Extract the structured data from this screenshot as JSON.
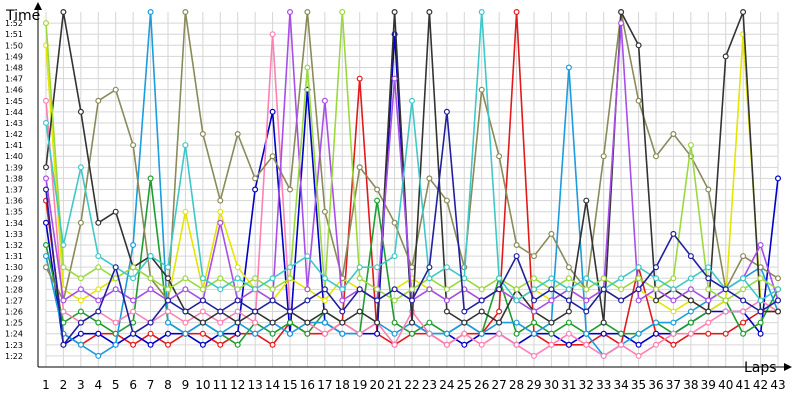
{
  "chart_data": {
    "type": "line",
    "xlabel": "Laps",
    "ylabel": "Time",
    "x": [
      1,
      2,
      3,
      4,
      5,
      6,
      7,
      8,
      9,
      10,
      11,
      12,
      13,
      14,
      15,
      16,
      17,
      18,
      19,
      20,
      21,
      22,
      23,
      24,
      25,
      26,
      27,
      28,
      29,
      30,
      31,
      32,
      33,
      34,
      35,
      36,
      37,
      38,
      39,
      40,
      41,
      42,
      43
    ],
    "xlim": [
      1,
      43
    ],
    "ylim": [
      "1:21",
      "1:53"
    ],
    "y_ticks": [
      "1:22",
      "1:23",
      "1:24",
      "1:25",
      "1:26",
      "1:27",
      "1:28",
      "1:29",
      "1:30",
      "1:31",
      "1:32",
      "1:33",
      "1:34",
      "1:35",
      "1:36",
      "1:37",
      "1:38",
      "1:39",
      "1:40",
      "1:41",
      "1:42",
      "1:43",
      "1:44",
      "1:45",
      "1:46",
      "1:47",
      "1:48",
      "1:49",
      "1:50",
      "1:51",
      "1:52"
    ],
    "grid": true,
    "legend": "none",
    "series": [
      {
        "color": "#e31a1c",
        "values": [
          "1:36",
          "1:24",
          "1:23",
          "1:24",
          "1:24",
          "1:23",
          "1:24",
          "1:23",
          "1:24",
          "1:24",
          "1:23",
          "1:24",
          "1:24",
          "1:23",
          "1:25",
          "1:24",
          "1:24",
          "1:25",
          "1:47",
          "1:24",
          "1:23",
          "1:24",
          "1:24",
          "1:23",
          "1:24",
          "1:24",
          "1:26",
          "1:53",
          "1:24",
          "1:23",
          "1:23",
          "1:23",
          "1:24",
          "1:23",
          "1:30",
          "1:24",
          "1:23",
          "1:24",
          "1:24",
          "1:24",
          "1:25",
          "1:26",
          "1:26"
        ]
      },
      {
        "color": "#0000c8",
        "values": [
          "1:34",
          "1:23",
          "1:24",
          "1:24",
          "1:23",
          "1:24",
          "1:23",
          "1:24",
          "1:24",
          "1:23",
          "1:24",
          "1:24",
          "1:37",
          "1:44",
          "1:24",
          "1:46",
          "1:25",
          "1:24",
          "1:24",
          "1:24",
          "1:51",
          "1:25",
          "1:24",
          "1:24",
          "1:23",
          "1:24",
          "1:24",
          "1:23",
          "1:24",
          "1:24",
          "1:23",
          "1:24",
          "1:24",
          "1:24",
          "1:23",
          "1:24",
          "1:24",
          "1:25",
          "1:26",
          "1:26",
          "1:26",
          "1:24",
          "1:38"
        ]
      },
      {
        "color": "#1f9e2e",
        "values": [
          "1:32",
          "1:25",
          "1:26",
          "1:25",
          "1:24",
          "1:25",
          "1:38",
          "1:25",
          "1:24",
          "1:25",
          "1:24",
          "1:23",
          "1:25",
          "1:24",
          "1:25",
          "1:24",
          "1:26",
          "1:25",
          "1:24",
          "1:36",
          "1:25",
          "1:24",
          "1:25",
          "1:24",
          "1:25",
          "1:24",
          "1:29",
          "1:24",
          "1:25",
          "1:24",
          "1:25",
          "1:24",
          "1:25",
          "1:24",
          "1:24",
          "1:25",
          "1:24",
          "1:25",
          "1:26",
          "1:27",
          "1:24",
          "1:25",
          "1:28"
        ]
      },
      {
        "color": "#1a9cde",
        "values": [
          "1:31",
          "1:24",
          "1:23",
          "1:22",
          "1:23",
          "1:32",
          "1:53",
          "1:25",
          "1:24",
          "1:25",
          "1:24",
          "1:25",
          "1:24",
          "1:25",
          "1:24",
          "1:25",
          "1:25",
          "1:24",
          "1:24",
          "1:25",
          "1:24",
          "1:25",
          "1:24",
          "1:24",
          "1:25",
          "1:24",
          "1:25",
          "1:25",
          "1:24",
          "1:25",
          "1:48",
          "1:24",
          "1:22",
          "1:23",
          "1:24",
          "1:25",
          "1:25",
          "1:26",
          "1:27",
          "1:28",
          "1:29",
          "1:30",
          "1:26"
        ]
      },
      {
        "color": "#e5e500",
        "values": [
          "1:50",
          "1:28",
          "1:27",
          "1:28",
          "1:29",
          "1:30",
          "1:29",
          "1:27",
          "1:35",
          "1:28",
          "1:35",
          "1:30",
          "1:28",
          "1:27",
          "1:29",
          "1:28",
          "1:27",
          "1:29",
          "1:28",
          "1:27",
          "1:28",
          "1:29",
          "1:28",
          "1:27",
          "1:28",
          "1:27",
          "1:28",
          "1:27",
          "1:28",
          "1:27",
          "1:28",
          "1:27",
          "1:28",
          "1:27",
          "1:28",
          "1:27",
          "1:26",
          "1:27",
          "1:26",
          "1:27",
          "1:51",
          "1:27",
          "1:26"
        ]
      },
      {
        "color": "#ff80b4",
        "values": [
          "1:45",
          "1:26",
          "1:25",
          "1:26",
          "1:25",
          "1:26",
          "1:25",
          "1:26",
          "1:25",
          "1:26",
          "1:25",
          "1:26",
          "1:25",
          "1:51",
          "1:26",
          "1:25",
          "1:24",
          "1:25",
          "1:24",
          "1:25",
          "1:23",
          "1:26",
          "1:24",
          "1:23",
          "1:24",
          "1:23",
          "1:24",
          "1:23",
          "1:22",
          "1:23",
          "1:24",
          "1:23",
          "1:22",
          "1:23",
          "1:22",
          "1:23",
          "1:24",
          "1:24",
          "1:25",
          "1:26",
          "1:26",
          "1:27",
          "1:26"
        ]
      },
      {
        "color": "#8a8a5a",
        "values": [
          "1:30",
          "1:27",
          "1:34",
          "1:45",
          "1:46",
          "1:41",
          "1:29",
          "1:27",
          "1:53",
          "1:42",
          "1:36",
          "1:42",
          "1:38",
          "1:40",
          "1:37",
          "1:53",
          "1:35",
          "1:29",
          "1:39",
          "1:37",
          "1:34",
          "1:30",
          "1:38",
          "1:36",
          "1:30",
          "1:46",
          "1:40",
          "1:32",
          "1:31",
          "1:33",
          "1:30",
          "1:28",
          "1:40",
          "1:53",
          "1:45",
          "1:40",
          "1:42",
          "1:40",
          "1:37",
          "1:28",
          "1:31",
          "1:30",
          "1:29"
        ]
      },
      {
        "color": "#333333",
        "values": [
          "1:39",
          "1:53",
          "1:44",
          "1:34",
          "1:35",
          "1:30",
          "1:31",
          "1:29",
          "1:26",
          "1:25",
          "1:26",
          "1:25",
          "1:26",
          "1:25",
          "1:26",
          "1:25",
          "1:26",
          "1:25",
          "1:26",
          "1:25",
          "1:53",
          "1:25",
          "1:53",
          "1:26",
          "1:25",
          "1:26",
          "1:25",
          "1:28",
          "1:26",
          "1:25",
          "1:26",
          "1:36",
          "1:25",
          "1:53",
          "1:50",
          "1:27",
          "1:28",
          "1:27",
          "1:26",
          "1:49",
          "1:53",
          "1:26",
          "1:26"
        ]
      },
      {
        "color": "#a84ee8",
        "values": [
          "1:38",
          "1:27",
          "1:28",
          "1:27",
          "1:28",
          "1:27",
          "1:28",
          "1:27",
          "1:28",
          "1:27",
          "1:34",
          "1:27",
          "1:28",
          "1:27",
          "1:53",
          "1:28",
          "1:45",
          "1:27",
          "1:28",
          "1:27",
          "1:47",
          "1:27",
          "1:28",
          "1:27",
          "1:28",
          "1:27",
          "1:28",
          "1:27",
          "1:26",
          "1:27",
          "1:28",
          "1:27",
          "1:28",
          "1:52",
          "1:27",
          "1:28",
          "1:27",
          "1:28",
          "1:27",
          "1:28",
          "1:29",
          "1:32",
          "1:27"
        ]
      },
      {
        "color": "#9bd940",
        "values": [
          "1:52",
          "1:30",
          "1:29",
          "1:30",
          "1:29",
          "1:30",
          "1:29",
          "1:28",
          "1:29",
          "1:28",
          "1:29",
          "1:28",
          "1:29",
          "1:28",
          "1:29",
          "1:48",
          "1:28",
          "1:53",
          "1:29",
          "1:28",
          "1:27",
          "1:28",
          "1:29",
          "1:28",
          "1:29",
          "1:28",
          "1:29",
          "1:28",
          "1:29",
          "1:28",
          "1:29",
          "1:28",
          "1:29",
          "1:28",
          "1:29",
          "1:28",
          "1:29",
          "1:41",
          "1:28",
          "1:27",
          "1:28",
          "1:29",
          "1:28"
        ]
      },
      {
        "color": "#40c8c8",
        "values": [
          "1:43",
          "1:32",
          "1:39",
          "1:31",
          "1:30",
          "1:29",
          "1:31",
          "1:30",
          "1:41",
          "1:29",
          "1:28",
          "1:29",
          "1:28",
          "1:29",
          "1:30",
          "1:31",
          "1:29",
          "1:28",
          "1:30",
          "1:30",
          "1:31",
          "1:45",
          "1:29",
          "1:30",
          "1:29",
          "1:53",
          "1:29",
          "1:27",
          "1:28",
          "1:29",
          "1:28",
          "1:29",
          "1:28",
          "1:29",
          "1:30",
          "1:29",
          "1:28",
          "1:29",
          "1:30",
          "1:28",
          "1:29",
          "1:27",
          "1:28"
        ]
      },
      {
        "color": "#2020a0",
        "values": [
          "1:37",
          "1:23",
          "1:25",
          "1:26",
          "1:30",
          "1:24",
          "1:25",
          "1:27",
          "1:26",
          "1:27",
          "1:26",
          "1:27",
          "1:26",
          "1:27",
          "1:26",
          "1:27",
          "1:28",
          "1:26",
          "1:28",
          "1:27",
          "1:28",
          "1:27",
          "1:30",
          "1:44",
          "1:26",
          "1:27",
          "1:28",
          "1:31",
          "1:27",
          "1:28",
          "1:27",
          "1:26",
          "1:28",
          "1:27",
          "1:28",
          "1:30",
          "1:33",
          "1:31",
          "1:29",
          "1:28",
          "1:27",
          "1:26",
          "1:27"
        ]
      }
    ]
  }
}
